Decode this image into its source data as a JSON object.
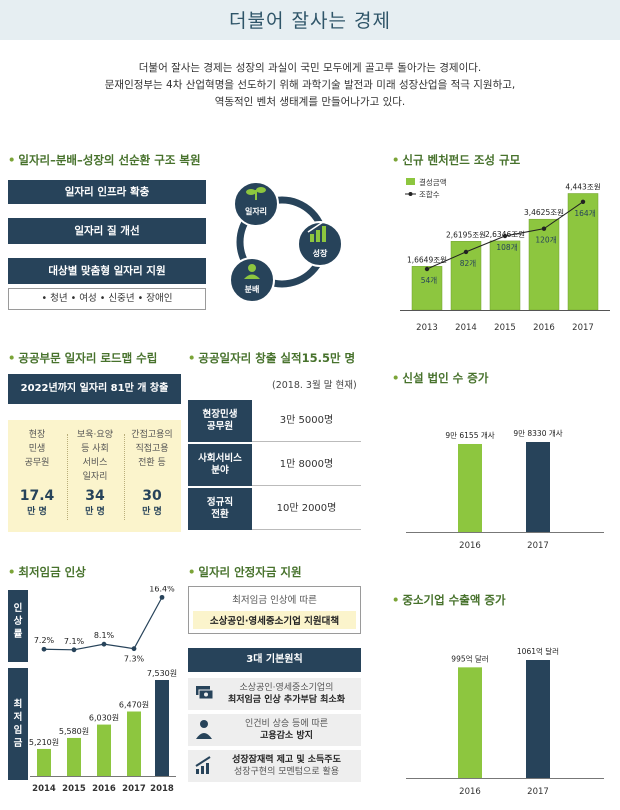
{
  "page_title": "더불어 잘사는 경제",
  "intro": [
    "더불어 잘사는 경제는 성장의 과실이 국민 모두에게 골고루 돌아가는 경제이다.",
    "문재인정부는 4차 산업혁명을 선도하기 위해 과학기술 발전과 미래 성장산업을 적극 지원하고,",
    "역동적인 벤처 생태계를 만들어나가고 있다."
  ],
  "cycle": {
    "title": "일자리–분배–성장의 선순환 구조 복원",
    "bars": [
      "일자리 인프라 확충",
      "일자리 질 개선",
      "대상별 맞춤형 일자리 지원"
    ],
    "tags": "• 청년  • 여성  • 신중년  • 장애인",
    "nodes": {
      "job": "일자리",
      "growth": "성장",
      "dist": "분배"
    }
  },
  "roadmap": {
    "title": "공공부문 일자리 로드맵 수립",
    "header": "2022년까지 일자리 81만 개 창출",
    "cols": [
      {
        "desc": [
          "현장",
          "민생",
          "공무원"
        ],
        "num": "17.4",
        "unit": "만 명"
      },
      {
        "desc": [
          "보육·요양",
          "등 사회",
          "서비스",
          "일자리"
        ],
        "num": "34",
        "unit": "만 명"
      },
      {
        "desc": [
          "간접고용의",
          "직접고용",
          "전환 등"
        ],
        "num": "30",
        "unit": "만 명"
      }
    ]
  },
  "public_jobs": {
    "title": "공공일자리 창출 실적15.5만 명",
    "note": "(2018. 3월 말 현재)",
    "rows": [
      {
        "label": [
          "현장민생",
          "공무원"
        ],
        "value": "3만 5000명"
      },
      {
        "label": [
          "사회서비스",
          "분야"
        ],
        "value": "1만 8000명"
      },
      {
        "label": [
          "정규직",
          "전환"
        ],
        "value": "10만 2000명"
      }
    ]
  },
  "min_wage": {
    "title": "최저임금 인상",
    "side_top": [
      "인",
      "상",
      "률"
    ],
    "side_bottom": [
      "최",
      "저",
      "임",
      "금"
    ]
  },
  "subsidy": {
    "title": "일자리 안정자금 지원",
    "box_line1": "최저임금 인상에 따른",
    "box_line2": "소상공인·영세중소기업 지원대책",
    "principles_header": "3대 기본원칙",
    "rows": [
      {
        "line1": "소상공인·영세중소기업의",
        "line2": "최저임금 인상 추가부담 최소화"
      },
      {
        "line1": "인건비 상승 등에 따른",
        "line2": "고용감소 방지"
      },
      {
        "line1": "성장잠재력 제고 및 소득주도",
        "line2": "성장구현의 모멘텀으로 활용"
      }
    ]
  },
  "colors": {
    "navy": "#27435a",
    "green": "#8dc63f",
    "title_green": "#47722c",
    "cream": "#fbf4cc"
  },
  "icons": [
    "seedling-icon",
    "chart-up-icon",
    "people-icon",
    "money-stack-icon",
    "person-icon",
    "rising-bars-icon"
  ],
  "chart_data": [
    {
      "id": "venture_fund",
      "title": "신규 벤처펀드 조성 규모",
      "type": "bar",
      "categories": [
        "2013",
        "2014",
        "2015",
        "2016",
        "2017"
      ],
      "series": [
        {
          "name": "결성금액",
          "values": [
            16649,
            26195,
            26346,
            34625,
            44430
          ],
          "labels": [
            "1,6649조원",
            "2,6195조원",
            "2,6346조원",
            "3,4625조원",
            "4,443조원"
          ]
        },
        {
          "name": "조합수",
          "values": [
            54,
            82,
            108,
            120,
            164
          ],
          "labels": [
            "54개",
            "82개",
            "108개",
            "120개",
            "164개"
          ]
        }
      ]
    },
    {
      "id": "new_corps",
      "title": "신설 법인 수 증가",
      "type": "bar",
      "categories": [
        "2016",
        "2017"
      ],
      "values": [
        96155,
        98330
      ],
      "labels": [
        "9만 6155 개사",
        "9만 8330 개사"
      ]
    },
    {
      "id": "min_wage_rate",
      "type": "line",
      "categories": [
        "2014",
        "2015",
        "2016",
        "2017",
        "2018"
      ],
      "values": [
        7.2,
        7.1,
        8.1,
        7.3,
        16.4
      ],
      "labels": [
        "7.2%",
        "7.1%",
        "8.1%",
        "7.3%",
        "16.4%"
      ]
    },
    {
      "id": "min_wage_amount",
      "type": "bar",
      "categories": [
        "2014",
        "2015",
        "2016",
        "2017",
        "2018"
      ],
      "values": [
        5210,
        5580,
        6030,
        6470,
        7530
      ],
      "labels": [
        "5,210원",
        "5,580원",
        "6,030원",
        "6,470원",
        "7,530원"
      ]
    },
    {
      "id": "sme_exports",
      "title": "중소기업 수출액 증가",
      "type": "bar",
      "categories": [
        "2016",
        "2017"
      ],
      "values": [
        995,
        1061
      ],
      "labels": [
        "995억 달러",
        "1061억 달러"
      ]
    }
  ]
}
